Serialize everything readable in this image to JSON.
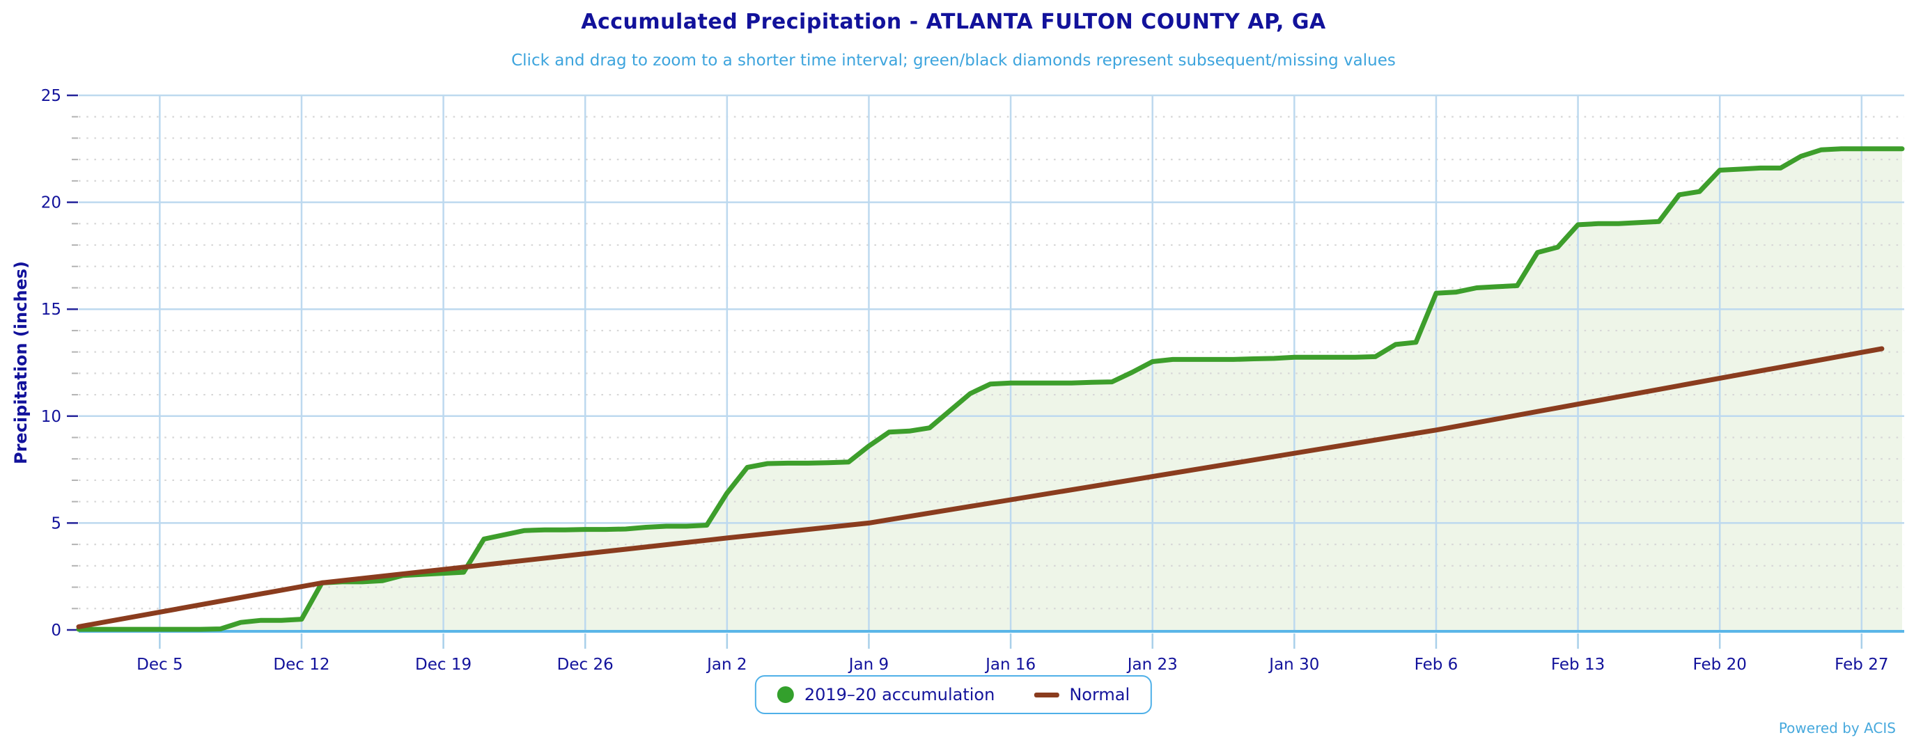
{
  "title": {
    "text": "Accumulated Precipitation - ATLANTA FULTON COUNTY AP, GA"
  },
  "subtitle": {
    "text": "Click and drag to zoom to a shorter time interval; green/black diamonds represent subsequent/missing values"
  },
  "y_axis": {
    "title": "Precipitation (inches)",
    "ticks": [
      0,
      5,
      10,
      15,
      20,
      25
    ],
    "minor_step": 1,
    "range": [
      0,
      25
    ]
  },
  "x_axis": {
    "ticks": [
      {
        "label": "Dec 5",
        "day": 4
      },
      {
        "label": "Dec 12",
        "day": 11
      },
      {
        "label": "Dec 19",
        "day": 18
      },
      {
        "label": "Dec 26",
        "day": 25
      },
      {
        "label": "Jan 2",
        "day": 32
      },
      {
        "label": "Jan 9",
        "day": 39
      },
      {
        "label": "Jan 16",
        "day": 46
      },
      {
        "label": "Jan 23",
        "day": 53
      },
      {
        "label": "Jan 30",
        "day": 60
      },
      {
        "label": "Feb 6",
        "day": 67
      },
      {
        "label": "Feb 13",
        "day": 74
      },
      {
        "label": "Feb 20",
        "day": 81
      },
      {
        "label": "Feb 27",
        "day": 88
      }
    ]
  },
  "legend": [
    {
      "label": "2019–20 accumulation",
      "marker": "circle",
      "color": "#33a02c"
    },
    {
      "label": "Normal",
      "marker": "line",
      "color": "#8a3c1e"
    }
  ],
  "footer": {
    "powered_by": "Powered by ACIS"
  },
  "colors": {
    "navy_text": "#12129b",
    "subtitle_blue": "#3da4dd",
    "grid_major": "#bdd9ef",
    "grid_minor": "#d7d7d7",
    "axis_line": "#5ab6e8",
    "x_tick": "#a9d0ea",
    "y_major_tick": "#23239a",
    "y_minor_tick": "#b3b3b3",
    "green_line": "#3d9e2b",
    "green_fill": "#eef5e8",
    "brown_line": "#8a3c1e"
  },
  "chart_data": {
    "type": "line",
    "title": "Accumulated Precipitation - ATLANTA FULTON COUNTY AP, GA",
    "ylabel": "Precipitation (inches)",
    "ylim": [
      0,
      25
    ],
    "x_domain": {
      "start": "Dec 1",
      "end": "Feb 29",
      "days": 90
    },
    "grid": {
      "weekly_vertical": true,
      "y_major": 5,
      "y_minor": 1,
      "legend_position": "bottom-center"
    },
    "series": [
      {
        "name": "2019-20 accumulation",
        "kind": "daily_accumulation_from_Dec1",
        "color": "#3d9e2b",
        "fill": "#eef5e8",
        "values": [
          0.03,
          0.03,
          0.03,
          0.03,
          0.03,
          0.03,
          0.03,
          0.05,
          0.35,
          0.45,
          0.45,
          0.5,
          2.2,
          2.25,
          2.25,
          2.3,
          2.55,
          2.6,
          2.65,
          2.7,
          4.25,
          4.45,
          4.65,
          4.68,
          4.68,
          4.7,
          4.7,
          4.72,
          4.8,
          4.85,
          4.85,
          4.9,
          6.4,
          7.6,
          7.78,
          7.8,
          7.8,
          7.82,
          7.85,
          8.6,
          9.25,
          9.3,
          9.45,
          10.25,
          11.05,
          11.5,
          11.55,
          11.55,
          11.55,
          11.55,
          11.58,
          11.6,
          12.05,
          12.55,
          12.65,
          12.65,
          12.65,
          12.65,
          12.68,
          12.7,
          12.75,
          12.75,
          12.75,
          12.75,
          12.78,
          13.35,
          13.45,
          15.75,
          15.8,
          16.0,
          16.05,
          16.1,
          17.65,
          17.9,
          18.95,
          19.0,
          19.0,
          19.05,
          19.1,
          20.35,
          20.5,
          21.5,
          21.55,
          21.6,
          21.6,
          22.15,
          22.45,
          22.5,
          22.5,
          22.5,
          22.5
        ]
      },
      {
        "name": "Normal",
        "kind": "anchor_points_day_value",
        "color": "#8a3c1e",
        "points": [
          [
            0,
            0.15
          ],
          [
            12,
            2.2
          ],
          [
            32,
            4.3
          ],
          [
            39,
            5.0
          ],
          [
            67,
            9.35
          ],
          [
            89,
            13.15
          ]
        ]
      }
    ]
  }
}
